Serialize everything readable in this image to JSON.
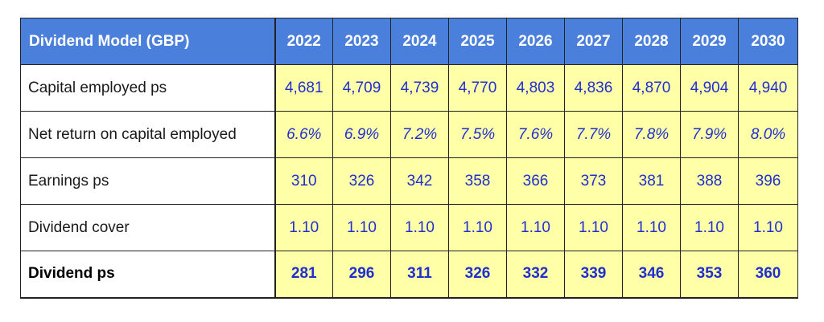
{
  "table": {
    "title": "Dividend Model (GBP)",
    "years": [
      "2022",
      "2023",
      "2024",
      "2025",
      "2026",
      "2027",
      "2028",
      "2029",
      "2030"
    ],
    "rows": [
      {
        "label": "Capital employed ps",
        "style": "normal",
        "values": [
          "4,681",
          "4,709",
          "4,739",
          "4,770",
          "4,803",
          "4,836",
          "4,870",
          "4,904",
          "4,940"
        ]
      },
      {
        "label": "Net return on capital employed",
        "style": "italic",
        "values": [
          "6.6%",
          "6.9%",
          "7.2%",
          "7.5%",
          "7.6%",
          "7.7%",
          "7.8%",
          "7.9%",
          "8.0%"
        ]
      },
      {
        "label": "Earnings ps",
        "style": "normal",
        "values": [
          "310",
          "326",
          "342",
          "358",
          "366",
          "373",
          "381",
          "388",
          "396"
        ]
      },
      {
        "label": "Dividend cover",
        "style": "normal",
        "values": [
          "1.10",
          "1.10",
          "1.10",
          "1.10",
          "1.10",
          "1.10",
          "1.10",
          "1.10",
          "1.10"
        ]
      },
      {
        "label": "Dividend ps",
        "style": "bold",
        "values": [
          "281",
          "296",
          "311",
          "326",
          "332",
          "339",
          "346",
          "353",
          "360"
        ]
      }
    ]
  },
  "colors": {
    "header_bg": "#4a7fdc",
    "value_bg": "#ffffa8",
    "value_text": "#1f2fd0"
  }
}
